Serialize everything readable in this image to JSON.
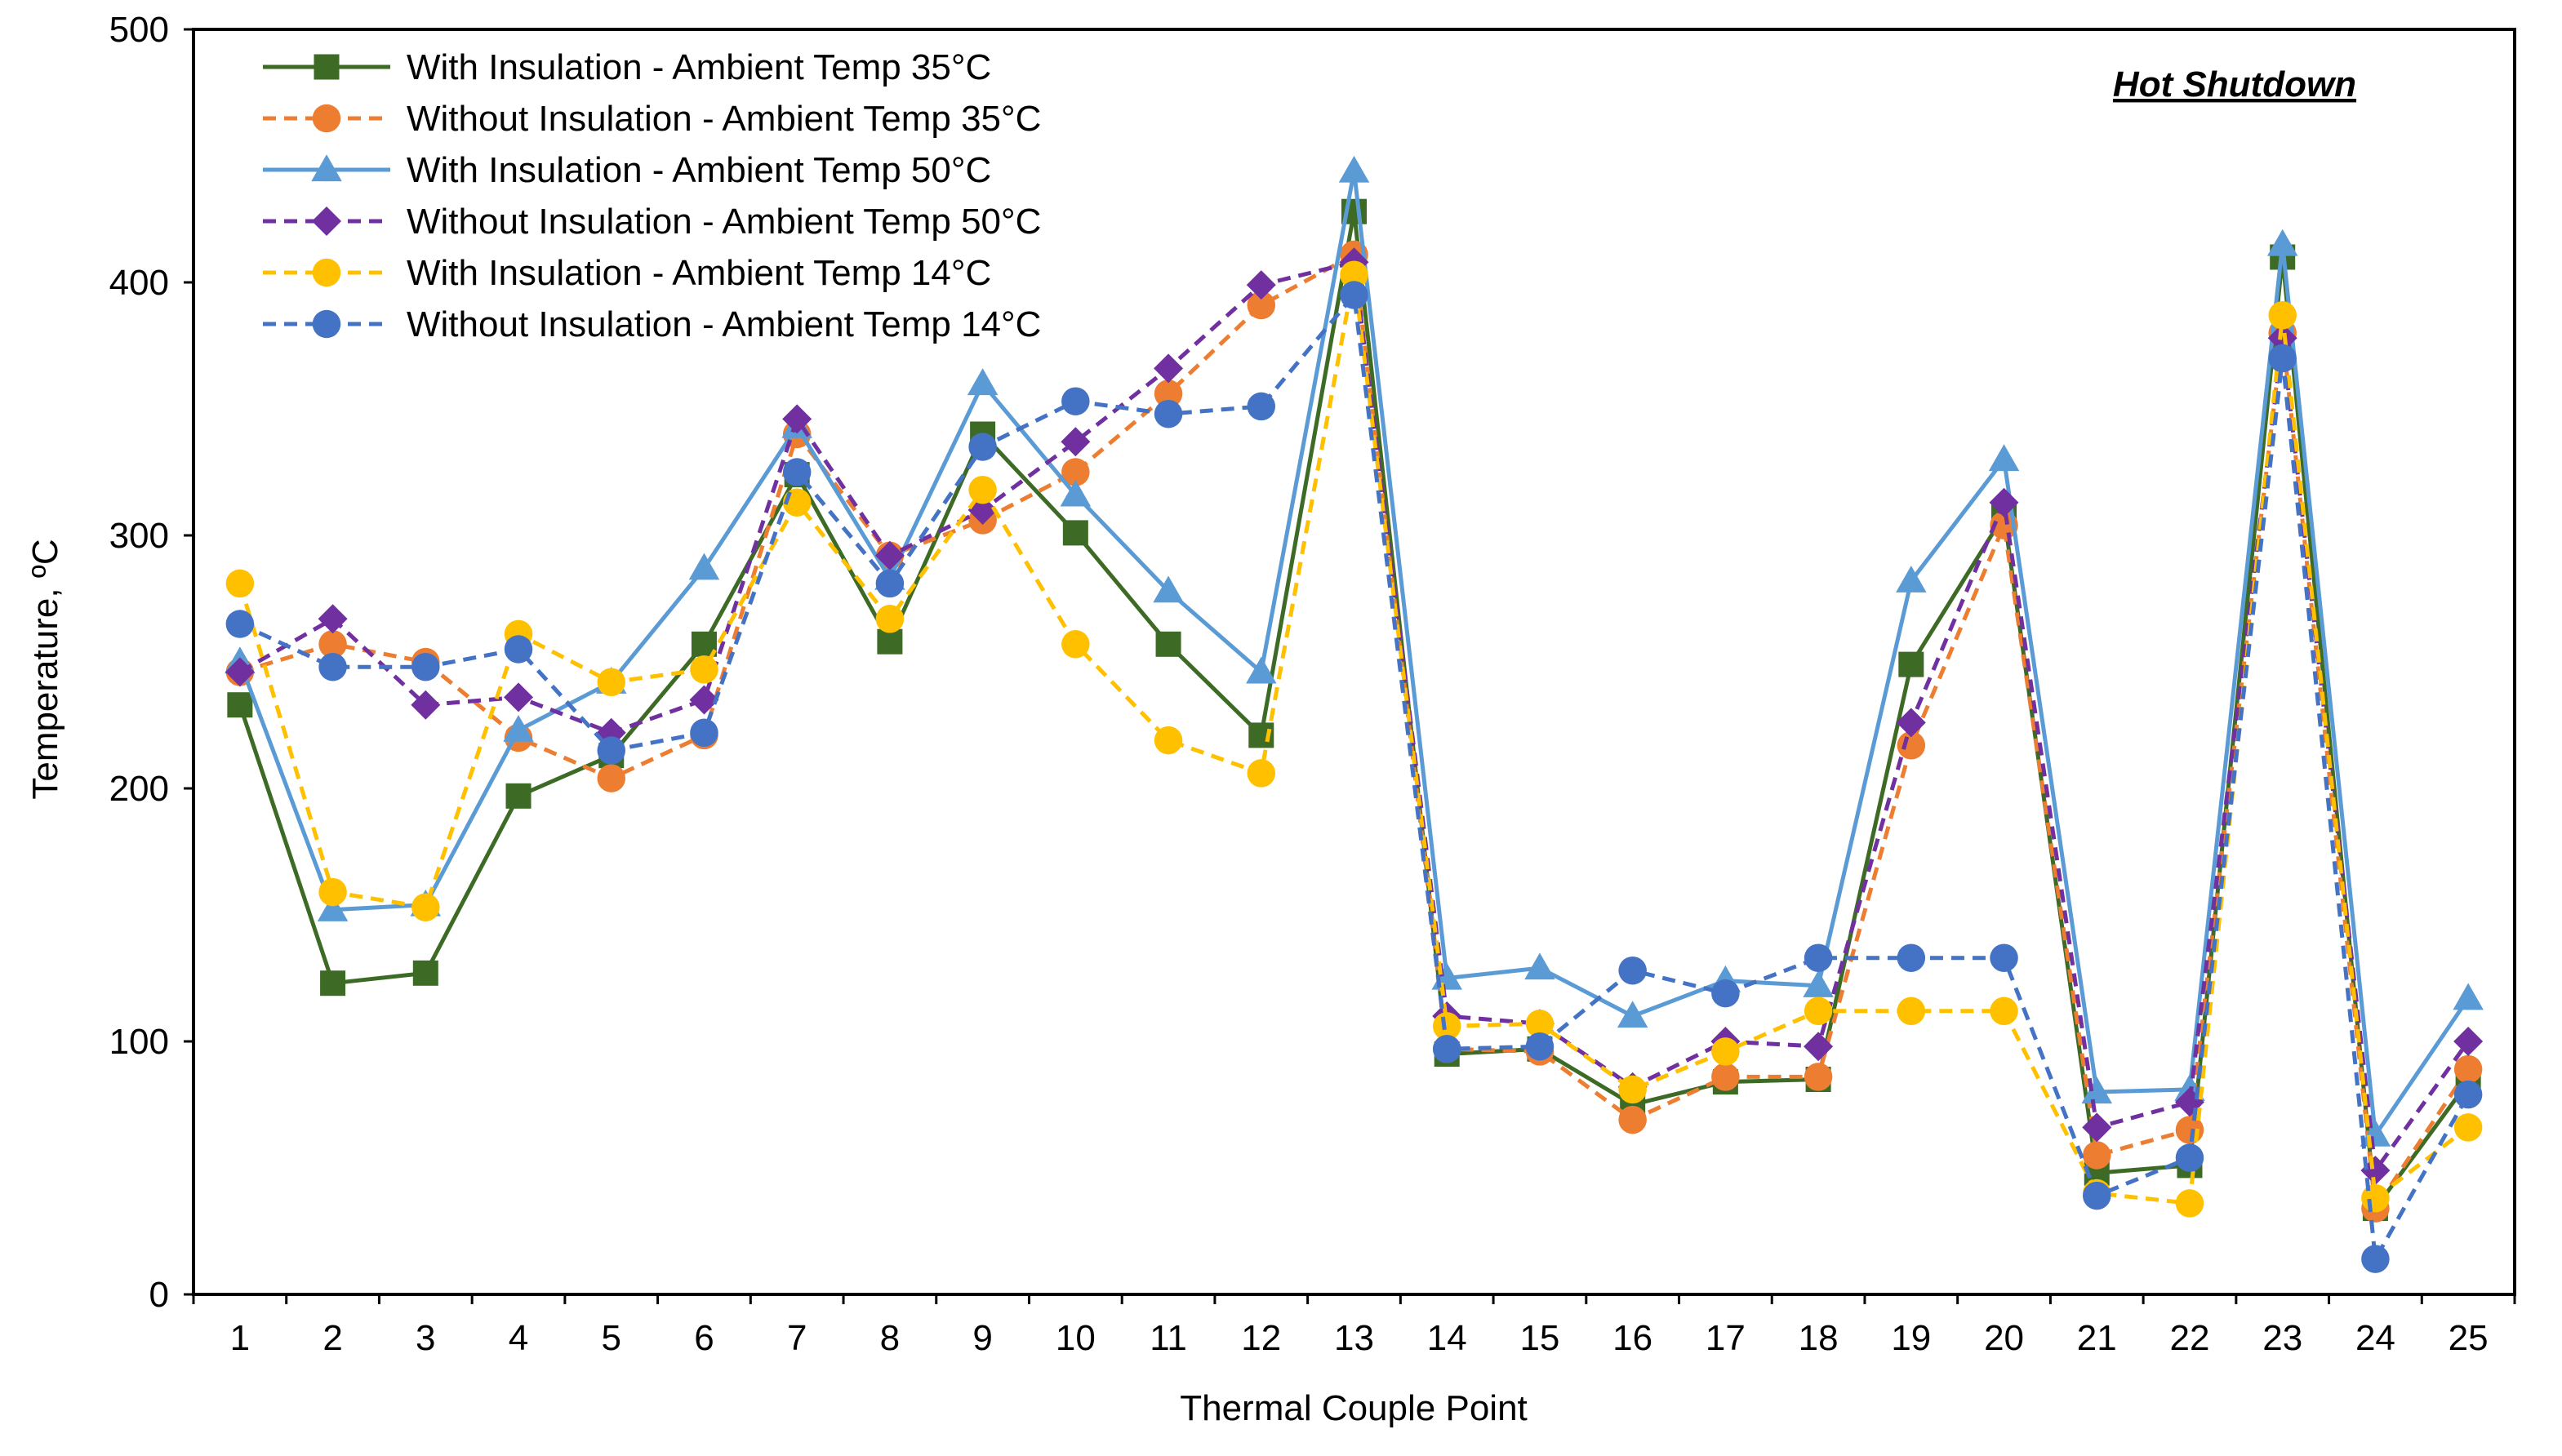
{
  "chart_data": {
    "type": "line",
    "title": "",
    "annotation": "Hot Shutdown",
    "xlabel": "Thermal Couple Point",
    "ylabel": "Temperature, ºC",
    "ylim": [
      0,
      500
    ],
    "yticks": [
      0,
      100,
      200,
      300,
      400,
      500
    ],
    "grid": false,
    "legend_position": "top-left",
    "categories": [
      "1",
      "2",
      "3",
      "4",
      "5",
      "6",
      "7",
      "8",
      "9",
      "10",
      "11",
      "12",
      "13",
      "14",
      "15",
      "16",
      "17",
      "18",
      "19",
      "20",
      "21",
      "22",
      "23",
      "24",
      "25"
    ],
    "series": [
      {
        "name": "With Insulation - Ambient Temp 35°C",
        "color": "#3d6b26",
        "dashed": false,
        "marker": "square",
        "values": [
          233,
          123,
          127,
          197,
          213,
          257,
          324,
          258,
          340,
          301,
          257,
          221,
          428,
          95,
          97,
          75,
          84,
          85,
          249,
          308,
          48,
          51,
          410,
          34,
          84
        ]
      },
      {
        "name": "Without Insulation - Ambient Temp 35°C",
        "color": "#ed7d31",
        "dashed": true,
        "marker": "circle",
        "values": [
          246,
          257,
          250,
          220,
          204,
          221,
          340,
          292,
          306,
          325,
          356,
          391,
          411,
          97,
          96,
          69,
          86,
          86,
          217,
          304,
          55,
          65,
          380,
          34,
          89
        ]
      },
      {
        "name": "With Insulation - Ambient Temp 50°C",
        "color": "#5b9bd5",
        "dashed": false,
        "marker": "triangle",
        "values": [
          250,
          152,
          154,
          223,
          242,
          287,
          343,
          283,
          360,
          316,
          278,
          246,
          444,
          125,
          129,
          110,
          124,
          122,
          282,
          330,
          80,
          81,
          415,
          63,
          117
        ]
      },
      {
        "name": "Without Insulation - Ambient Temp 50°C",
        "color": "#7030a0",
        "dashed": true,
        "marker": "diamond",
        "values": [
          246,
          267,
          233,
          236,
          222,
          235,
          346,
          292,
          310,
          337,
          366,
          399,
          408,
          110,
          107,
          82,
          100,
          98,
          226,
          313,
          66,
          76,
          378,
          49,
          100
        ]
      },
      {
        "name": "With Insulation - Ambient Temp 14°C",
        "color": "#ffc000",
        "dashed": true,
        "marker": "circle",
        "values": [
          281,
          159,
          153,
          261,
          242,
          247,
          313,
          267,
          318,
          257,
          219,
          206,
          403,
          106,
          107,
          81,
          96,
          112,
          112,
          112,
          40,
          36,
          387,
          38,
          66
        ]
      },
      {
        "name": "Without Insulation - Ambient Temp 14°C",
        "color": "#4472c4",
        "dashed": true,
        "marker": "circle",
        "values": [
          265,
          248,
          248,
          255,
          215,
          222,
          325,
          281,
          335,
          353,
          348,
          351,
          395,
          97,
          98,
          128,
          119,
          133,
          133,
          133,
          39,
          54,
          370,
          14,
          79
        ]
      }
    ]
  }
}
